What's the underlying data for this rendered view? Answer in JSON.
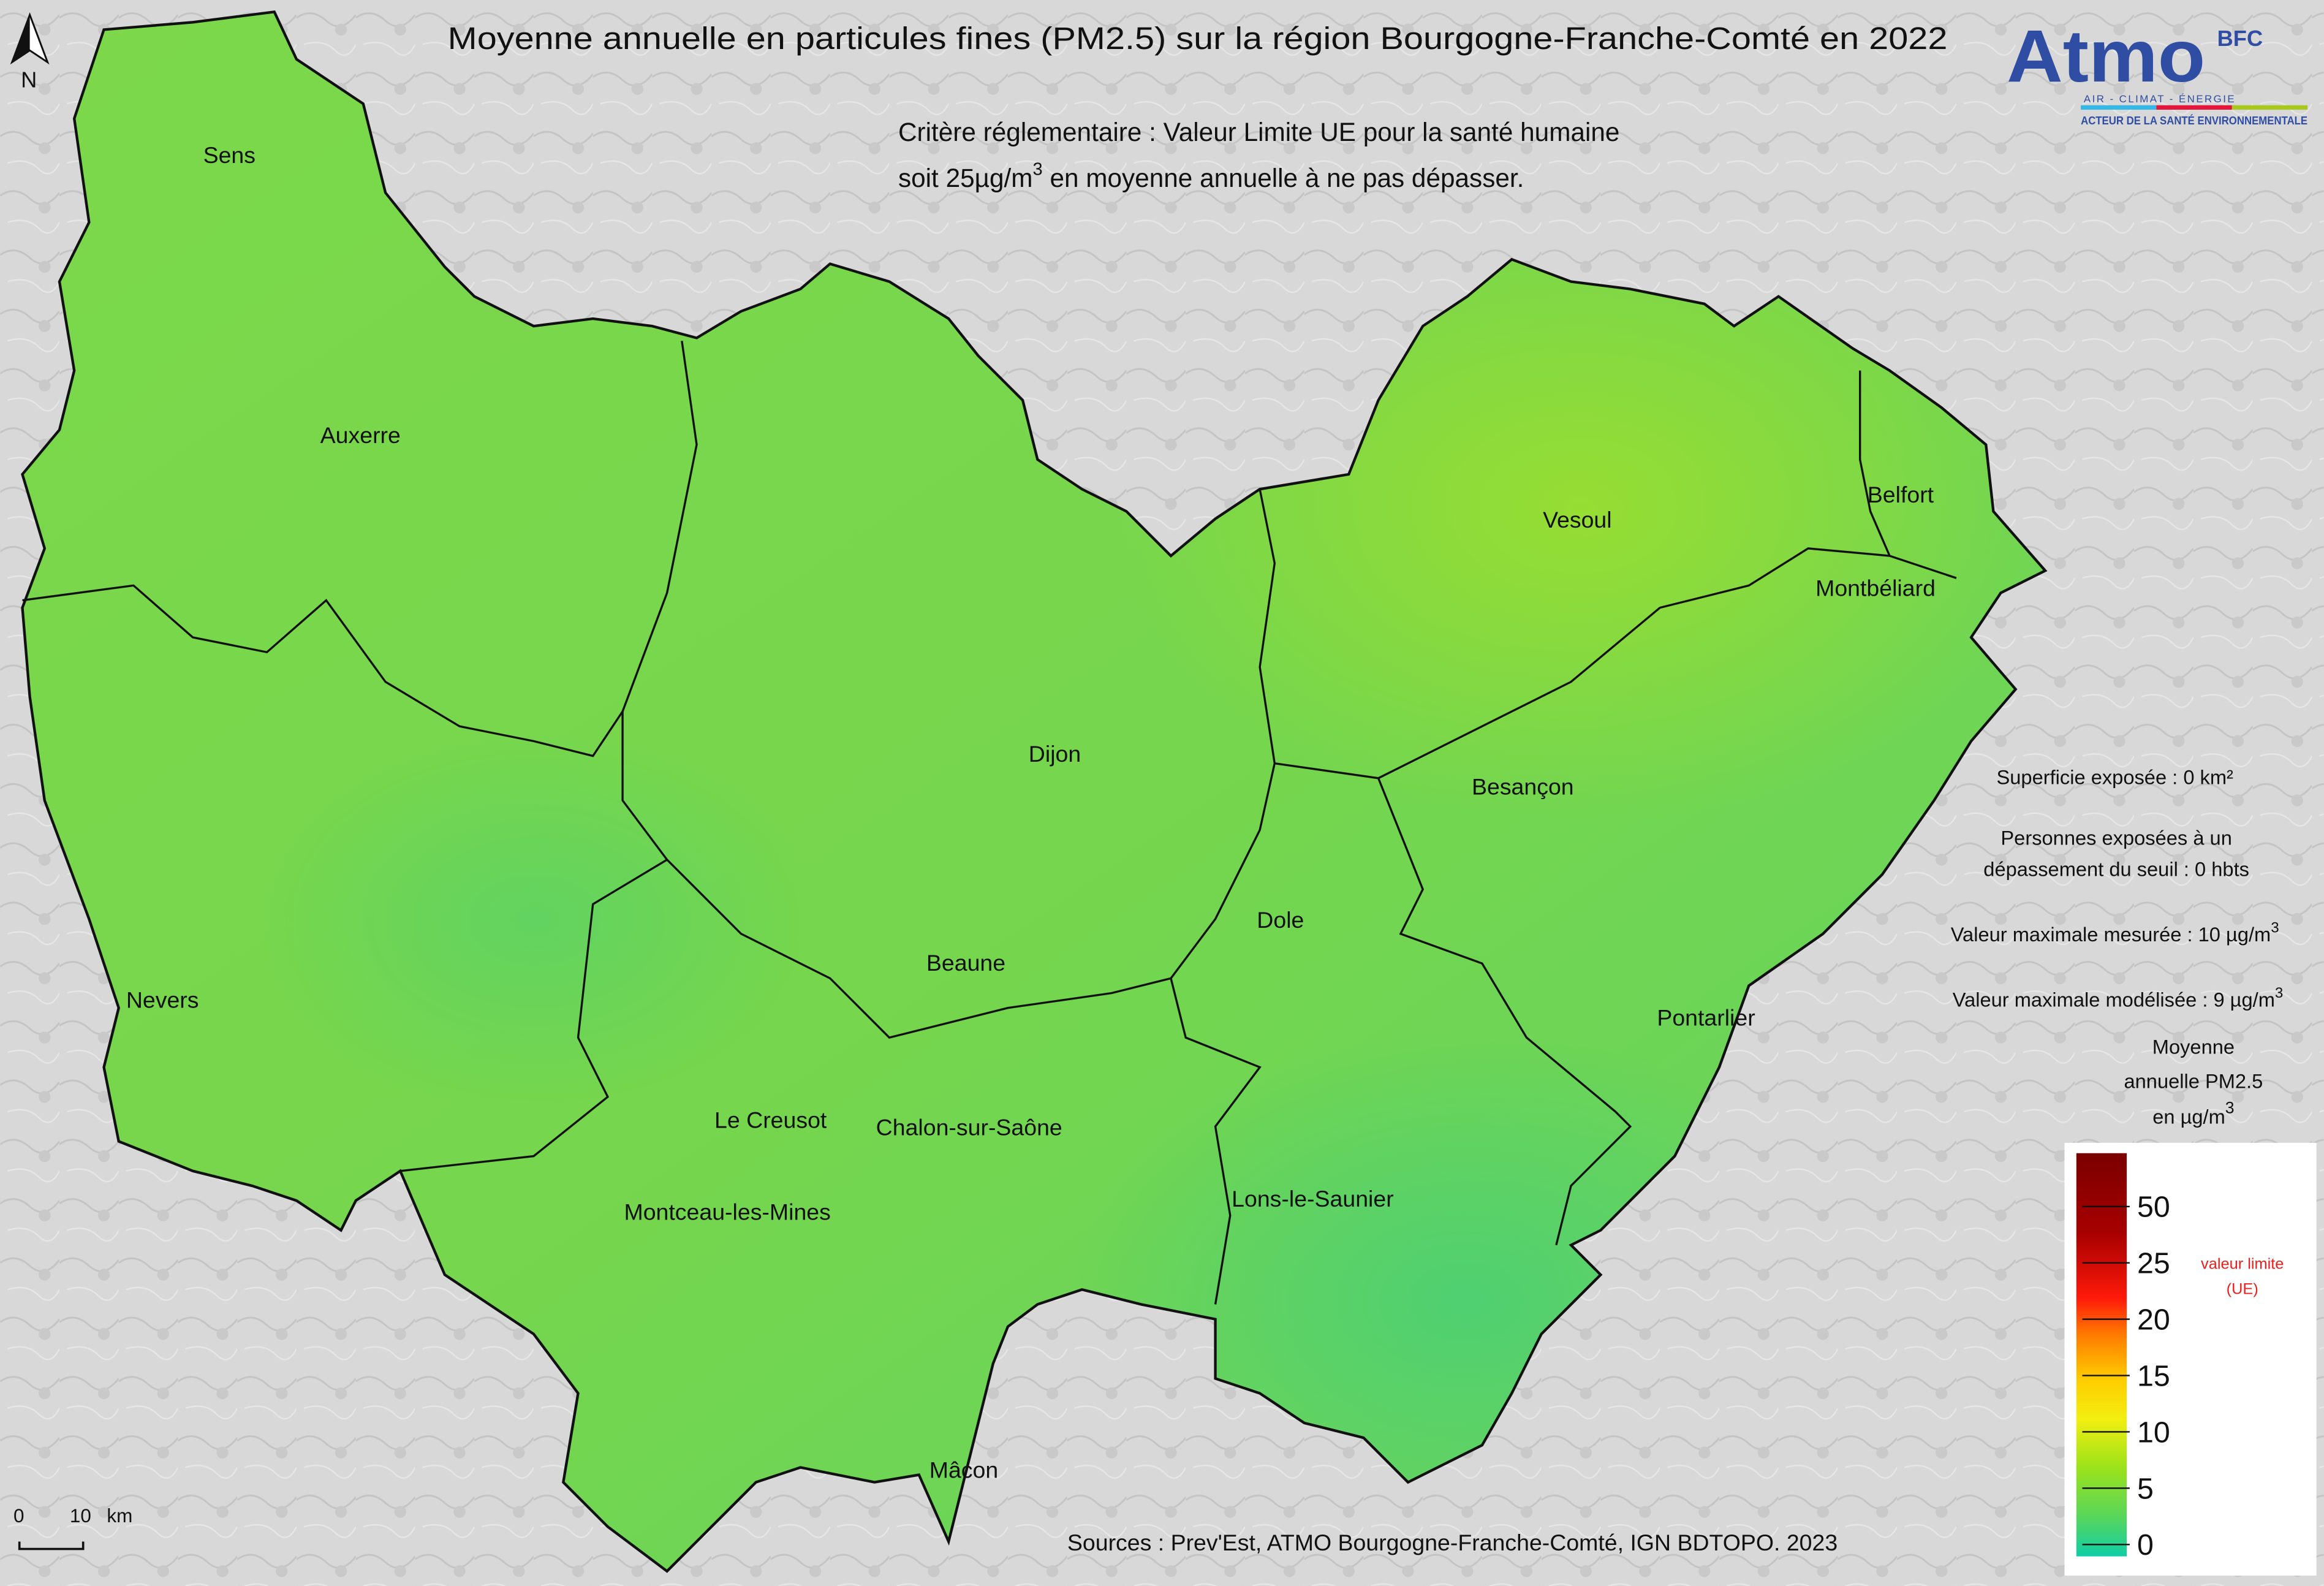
{
  "title": "Moyenne annuelle en particules fines (PM2.5) sur la région Bourgogne-Franche-Comté en 2022",
  "criteria": {
    "line1": "Critère réglementaire : Valeur Limite UE pour la santé humaine",
    "line2_pre": "soit 25µg/m",
    "line2_sup": "3",
    "line2_post": " en moyenne annuelle à ne pas dépasser."
  },
  "logo": {
    "name": "Atmo",
    "suffix": "BFC",
    "tagline": "AIR - CLIMAT - ÉNERGIE",
    "motto": "ACTEUR DE LA SANTÉ ENVIRONNEMENTALE",
    "colors": [
      "#35b8e6",
      "#e4163a",
      "#a8c81c"
    ],
    "brand_color": "#2f4da3"
  },
  "north_arrow": {
    "label": "N",
    "icon": "north-arrow-icon"
  },
  "scale_bar": {
    "zero": "0",
    "distance": "10",
    "unit": "km"
  },
  "cities": [
    "Sens",
    "Auxerre",
    "Nevers",
    "Dijon",
    "Beaune",
    "Le Creusot",
    "Chalon-sur-Saône",
    "Montceau-les-Mines",
    "Mâcon",
    "Vesoul",
    "Belfort",
    "Montbéliard",
    "Besançon",
    "Dole",
    "Pontarlier",
    "Lons-le-Saunier"
  ],
  "stats": {
    "area": "Superficie exposée : 0 km²",
    "people_line1": "Personnes exposées à un",
    "people_line2": "dépassement du seuil : 0 hbts",
    "max_measured": "Valeur maximale mesurée : 10 µg/m",
    "max_modeled": "Valeur maximale modélisée : 9 µg/m",
    "sup": "3"
  },
  "legend": {
    "title_line1": "Moyenne",
    "title_line2": "annuelle PM2.5",
    "title_line3": "en µg/m",
    "title_sup": "3",
    "ticks": [
      "50",
      "25",
      "20",
      "15",
      "10",
      "5",
      "0"
    ],
    "limit_label_line1": "valeur limite",
    "limit_label_line2": "(UE)",
    "limit_value": 25,
    "limit_color": "#e8201e",
    "scale_colors": [
      "#0fcea6",
      "#59d65a",
      "#9be21a",
      "#f2ee10",
      "#ffcc00",
      "#ff7b00",
      "#ff1a0a",
      "#a80000",
      "#7a0000"
    ]
  },
  "sources": "Sources : Prev'Est, ATMO Bourgogne-Franche-Comté, IGN BDTOPO. 2023",
  "map_values": {
    "region_fill_range_ugm3": [
      6,
      10
    ]
  }
}
